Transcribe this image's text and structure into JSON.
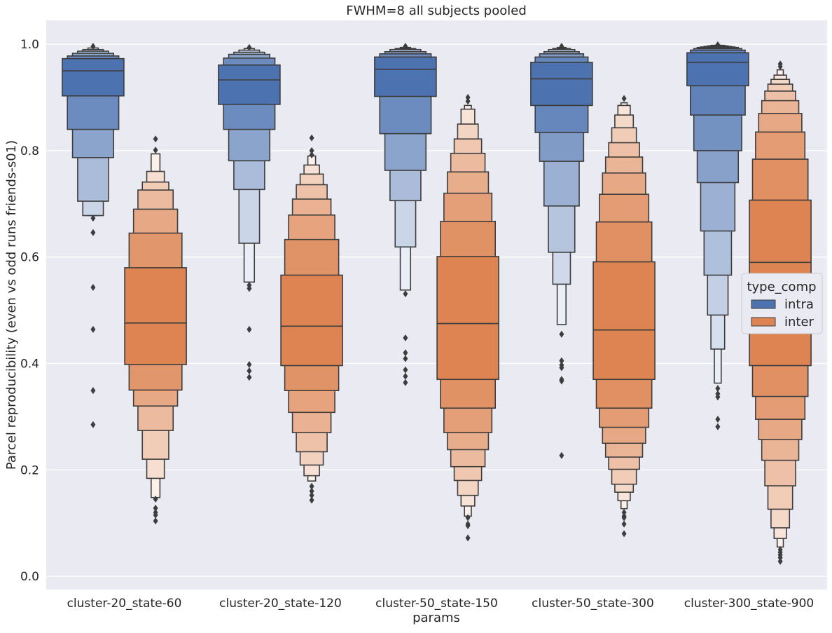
{
  "chart_data": {
    "type": "boxenplot",
    "title": "FWHM=8 all subjects pooled",
    "xlabel": "params",
    "ylabel": "Parcel reproducibility (even vs odd runs friends-s01)",
    "ylim": [
      -0.025,
      1.045
    ],
    "yticks": [
      0.0,
      0.2,
      0.4,
      0.6,
      0.8,
      1.0
    ],
    "ytick_labels": [
      "0.0",
      "0.2",
      "0.4",
      "0.6",
      "0.8",
      "1.0"
    ],
    "grid": true,
    "legend": {
      "title": "type_comp",
      "placement": "right",
      "entries": [
        "intra",
        "inter"
      ]
    },
    "colors": {
      "intra": "#4c72b0",
      "inter": "#dd8452",
      "background": "#eaeaf2",
      "line": "#3d3d3d",
      "grid": "#ffffff"
    },
    "categories": [
      "cluster-20_state-60",
      "cluster-20_state-120",
      "cluster-50_state-150",
      "cluster-50_state-300",
      "cluster-300_state-900"
    ],
    "series": [
      {
        "name": "intra",
        "groups": [
          {
            "median": 0.95,
            "boxes": [
              [
                0.903,
                0.973
              ],
              [
                0.84,
                0.978
              ],
              [
                0.787,
                0.983
              ],
              [
                0.705,
                0.987
              ],
              [
                0.678,
                0.99
              ],
              [
                0.678,
                0.993
              ]
            ],
            "outliers": [
              0.673,
              0.646,
              0.543,
              0.464,
              0.349,
              0.285,
              0.996
            ]
          },
          {
            "median": 0.933,
            "boxes": [
              [
                0.887,
                0.961
              ],
              [
                0.84,
                0.974
              ],
              [
                0.781,
                0.981
              ],
              [
                0.727,
                0.985
              ],
              [
                0.626,
                0.989
              ],
              [
                0.553,
                0.992
              ]
            ],
            "outliers": [
              0.547,
              0.541,
              0.464,
              0.398,
              0.386,
              0.374,
              0.994
            ]
          },
          {
            "median": 0.953,
            "boxes": [
              [
                0.902,
                0.976
              ],
              [
                0.832,
                0.982
              ],
              [
                0.763,
                0.986
              ],
              [
                0.706,
                0.99
              ],
              [
                0.619,
                0.992
              ],
              [
                0.538,
                0.994
              ]
            ],
            "outliers": [
              0.531,
              0.448,
              0.42,
              0.409,
              0.388,
              0.376,
              0.364,
              0.996
            ]
          },
          {
            "median": 0.935,
            "boxes": [
              [
                0.885,
                0.966
              ],
              [
                0.834,
                0.976
              ],
              [
                0.78,
                0.982
              ],
              [
                0.696,
                0.986
              ],
              [
                0.609,
                0.99
              ],
              [
                0.549,
                0.992
              ],
              [
                0.473,
                0.994
              ]
            ],
            "outliers": [
              0.455,
              0.405,
              0.397,
              0.392,
              0.37,
              0.367,
              0.227,
              0.996
            ]
          },
          {
            "median": 0.966,
            "boxes": [
              [
                0.922,
                0.984
              ],
              [
                0.867,
                0.989
              ],
              [
                0.8,
                0.992
              ],
              [
                0.74,
                0.994
              ],
              [
                0.649,
                0.995
              ],
              [
                0.566,
                0.996
              ],
              [
                0.491,
                0.997
              ],
              [
                0.427,
                0.998
              ],
              [
                0.363,
                0.998
              ]
            ],
            "outliers": [
              0.353,
              0.343,
              0.337,
              0.295,
              0.281,
              0.999
            ]
          }
        ]
      },
      {
        "name": "inter",
        "groups": [
          {
            "median": 0.476,
            "boxes": [
              [
                0.398,
                0.58
              ],
              [
                0.35,
                0.645
              ],
              [
                0.32,
                0.69
              ],
              [
                0.274,
                0.726
              ],
              [
                0.22,
                0.741
              ],
              [
                0.184,
                0.761
              ],
              [
                0.148,
                0.794
              ]
            ],
            "outliers": [
              0.822,
              0.801,
              0.145,
              0.128,
              0.12,
              0.115,
              0.104
            ]
          },
          {
            "median": 0.47,
            "boxes": [
              [
                0.396,
                0.566
              ],
              [
                0.349,
                0.633
              ],
              [
                0.308,
                0.679
              ],
              [
                0.27,
                0.709
              ],
              [
                0.234,
                0.736
              ],
              [
                0.209,
                0.756
              ],
              [
                0.189,
                0.773
              ],
              [
                0.179,
                0.79
              ]
            ],
            "outliers": [
              0.824,
              0.8,
              0.792,
              0.169,
              0.16,
              0.152,
              0.143
            ]
          },
          {
            "median": 0.475,
            "boxes": [
              [
                0.37,
                0.601
              ],
              [
                0.316,
                0.667
              ],
              [
                0.27,
                0.72
              ],
              [
                0.238,
                0.76
              ],
              [
                0.206,
                0.795
              ],
              [
                0.18,
                0.822
              ],
              [
                0.152,
                0.85
              ],
              [
                0.132,
                0.878
              ],
              [
                0.113,
                0.885
              ]
            ],
            "outliers": [
              0.9,
              0.893,
              0.11,
              0.098,
              0.095,
              0.072
            ]
          },
          {
            "median": 0.463,
            "boxes": [
              [
                0.37,
                0.591
              ],
              [
                0.316,
                0.666
              ],
              [
                0.28,
                0.718
              ],
              [
                0.25,
                0.758
              ],
              [
                0.224,
                0.788
              ],
              [
                0.201,
                0.815
              ],
              [
                0.173,
                0.843
              ],
              [
                0.158,
                0.867
              ],
              [
                0.142,
                0.885
              ],
              [
                0.127,
                0.89
              ]
            ],
            "outliers": [
              0.898,
              0.12,
              0.113,
              0.11,
              0.098,
              0.08
            ]
          },
          {
            "median": 0.59,
            "boxes": [
              [
                0.396,
                0.707
              ],
              [
                0.338,
                0.784
              ],
              [
                0.295,
                0.835
              ],
              [
                0.257,
                0.87
              ],
              [
                0.218,
                0.894
              ],
              [
                0.17,
                0.912
              ],
              [
                0.126,
                0.925
              ],
              [
                0.091,
                0.934
              ],
              [
                0.071,
                0.942
              ],
              [
                0.055,
                0.952
              ]
            ],
            "outliers": [
              0.963,
              0.958,
              0.05,
              0.045,
              0.04,
              0.035,
              0.028
            ]
          }
        ]
      }
    ]
  }
}
